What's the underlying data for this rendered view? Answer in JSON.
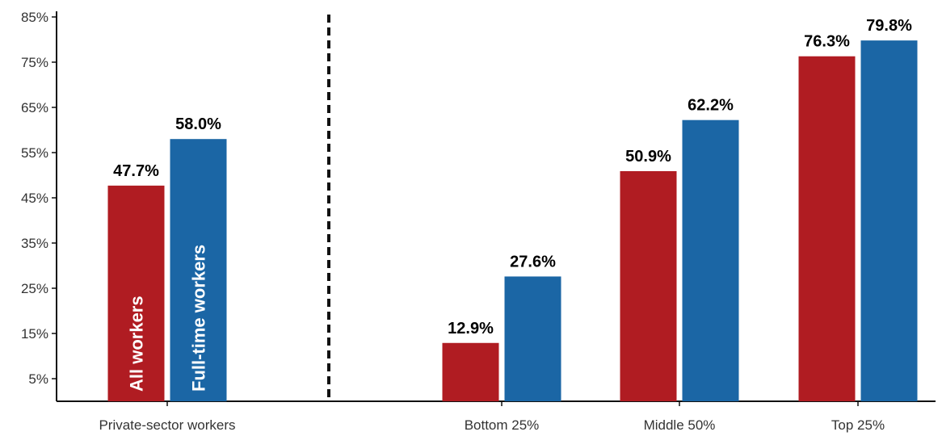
{
  "chart_data": {
    "type": "bar",
    "categories": [
      "Private-sector workers",
      "Bottom 25%",
      "Middle 50%",
      "Top 25%"
    ],
    "series": [
      {
        "name": "All workers",
        "color": "#b01c22",
        "values": [
          47.7,
          12.9,
          50.9,
          76.3
        ],
        "labels": [
          "47.7%",
          "12.9%",
          "50.9%",
          "76.3%"
        ]
      },
      {
        "name": "Full-time workers",
        "color": "#1b66a5",
        "values": [
          58.0,
          27.6,
          62.2,
          79.8
        ],
        "labels": [
          "58.0%",
          "27.6%",
          "62.2%",
          "79.8%"
        ]
      }
    ],
    "ylim": [
      0,
      85
    ],
    "yticks": [
      "5%",
      "15%",
      "25%",
      "35%",
      "45%",
      "55%",
      "65%",
      "75%",
      "85%"
    ],
    "ytick_values": [
      5,
      15,
      25,
      35,
      45,
      55,
      65,
      75,
      85
    ],
    "divider_after_category": 0,
    "divider_style": "dashed",
    "grid": false,
    "legend": "inside first pair of bars"
  }
}
